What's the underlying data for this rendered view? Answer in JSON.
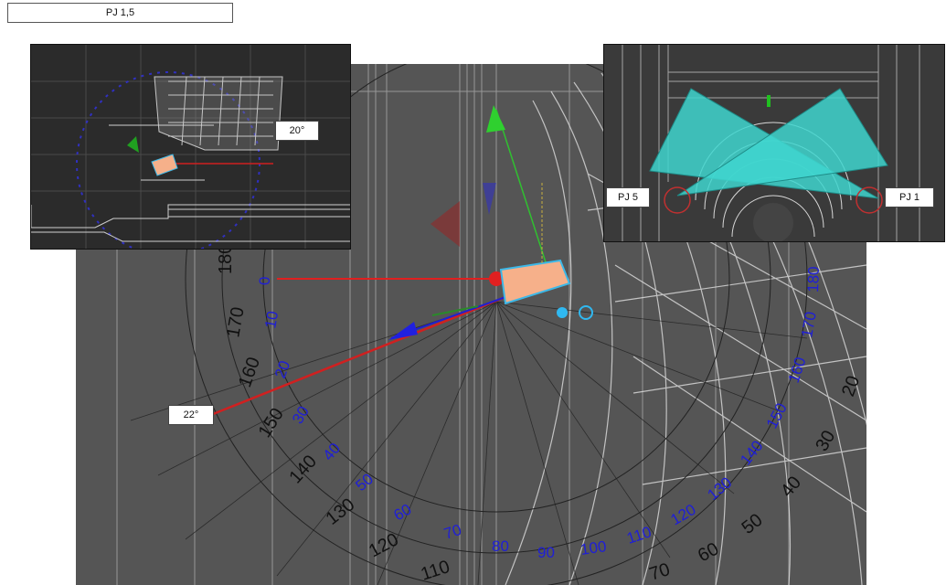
{
  "header": {
    "title": "PJ 1,5"
  },
  "main_view": {
    "angle_label": "22°",
    "outer_scale": [
      "180",
      "170",
      "160",
      "150",
      "140",
      "130",
      "120",
      "110"
    ],
    "inner_scale": [
      "0",
      "10",
      "20",
      "30",
      "40",
      "50",
      "60",
      "70",
      "80",
      "90",
      "100",
      "110",
      "120",
      "130",
      "140",
      "150",
      "160",
      "170",
      "180"
    ],
    "right_scale": [
      "20",
      "30",
      "40",
      "50",
      "60",
      "70"
    ],
    "colors": {
      "inner_scale": "#1f1fd6",
      "outer_scale": "#111111",
      "red_axis": "#e02020",
      "gizmo_green": "#20c020",
      "projector": "#f6b08a"
    }
  },
  "left_inset": {
    "angle_label": "20°"
  },
  "right_inset": {
    "left_label": "PJ 5",
    "right_label": "PJ 1",
    "colors": {
      "frustum": "#3fd6cf"
    }
  }
}
